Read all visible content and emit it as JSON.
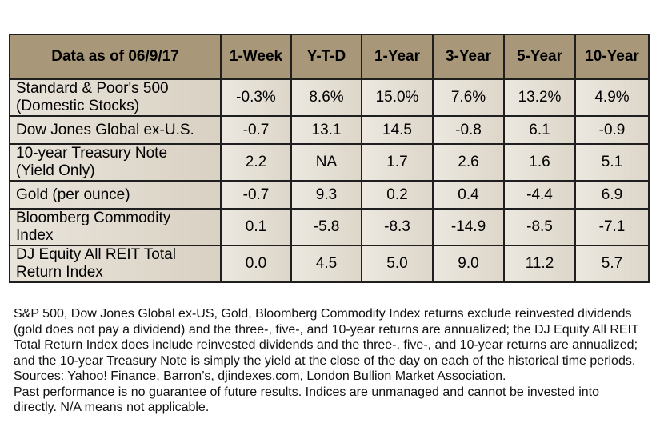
{
  "table": {
    "header": [
      "Data as of 06/9/17",
      "1-Week",
      "Y-T-D",
      "1-Year",
      "3-Year",
      "5-Year",
      "10-Year"
    ],
    "rows": [
      {
        "label_line1": "Standard & Poor's 500",
        "label_line2": "(Domestic Stocks)",
        "values": [
          "-0.3%",
          "8.6%",
          "15.0%",
          "7.6%",
          "13.2%",
          "4.9%"
        ]
      },
      {
        "label_line1": "Dow Jones Global ex-U.S.",
        "label_line2": "",
        "values": [
          "-0.7",
          "13.1",
          "14.5",
          "-0.8",
          "6.1",
          "-0.9"
        ]
      },
      {
        "label_line1": "10-year Treasury Note",
        "label_line2": "(Yield Only)",
        "values": [
          "2.2",
          "NA",
          "1.7",
          "2.6",
          "1.6",
          "5.1"
        ]
      },
      {
        "label_line1": "Gold (per ounce)",
        "label_line2": "",
        "values": [
          "-0.7",
          "9.3",
          "0.2",
          "0.4",
          "-4.4",
          "6.9"
        ]
      },
      {
        "label_line1": "Bloomberg Commodity",
        "label_line2": "Index",
        "values": [
          "0.1",
          "-5.8",
          "-8.3",
          "-14.9",
          "-8.5",
          "-7.1"
        ]
      },
      {
        "label_line1": "DJ Equity All REIT Total",
        "label_line2": "Return Index",
        "values": [
          "0.0",
          "4.5",
          "5.0",
          "9.0",
          "11.2",
          "5.7"
        ]
      }
    ]
  },
  "notes": {
    "methodology": "S&P 500, Dow Jones Global ex-US, Gold, Bloomberg Commodity Index returns exclude reinvested dividends (gold does not pay a dividend) and the three-, five-, and 10-year returns are annualized; the DJ Equity All REIT Total Return Index does include reinvested dividends and the three-, five-, and 10-year returns are annualized; and the 10-year Treasury Note is simply the yield at the close of the day on each of the historical time periods.",
    "sources": "Sources: Yahoo! Finance, Barron’s, djindexes.com, London Bullion Market Association.",
    "disclaimer": "Past performance is no guarantee of future results. Indices are unmanaged and cannot be invested into directly. N/A means not applicable."
  }
}
